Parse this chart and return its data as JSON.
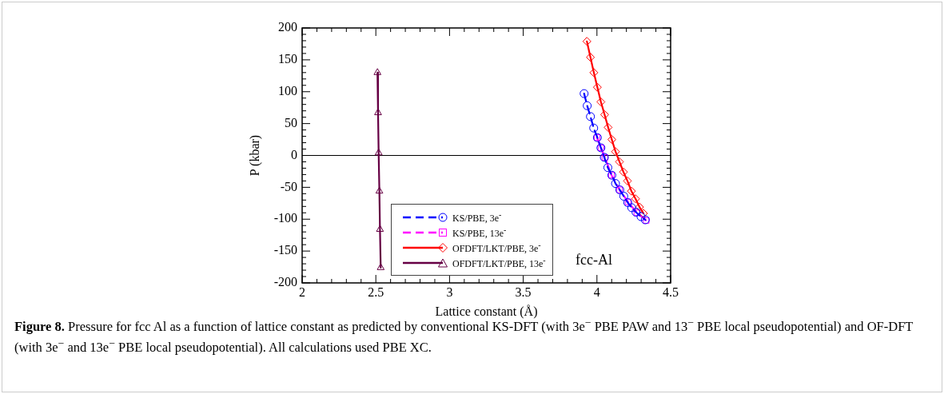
{
  "chart_data": {
    "type": "line",
    "xlabel": "Lattice constant (Å)",
    "ylabel": "P (kbar)",
    "xlim": [
      2,
      4.5
    ],
    "xticks": [
      2,
      2.5,
      3,
      3.5,
      4,
      4.5
    ],
    "ylim": [
      -200,
      200
    ],
    "yticks": [
      -200,
      -150,
      -100,
      -50,
      0,
      50,
      100,
      150,
      200
    ],
    "grid": false,
    "legend": "bottom left",
    "ref_lines": [
      {
        "axis": "y",
        "value": 0,
        "color": "#000000",
        "line_style": "solid"
      }
    ],
    "series": [
      {
        "name": "KS/PBE, 3e$^{-}$",
        "color": "#0000ff",
        "marker": "circle",
        "line_style": "dashed",
        "x": [
          3.913,
          3.934,
          3.956,
          3.978,
          4.003,
          4.027,
          4.05,
          4.074,
          4.101,
          4.126,
          4.155,
          4.182,
          4.209,
          4.236,
          4.265,
          4.299,
          4.328
        ],
        "values": [
          97,
          78,
          61,
          43,
          28,
          12,
          -3,
          -19,
          -31,
          -44,
          -54,
          -64,
          -74,
          -82,
          -89,
          -96,
          -101
        ]
      },
      {
        "name": "KS/PBE, 13e$^{-}$",
        "color": "#ff00ff",
        "marker": "square",
        "line_style": "dashed",
        "x": [
          4.001,
          4.027,
          4.054,
          4.099,
          4.154,
          4.211,
          4.271,
          4.334
        ],
        "values": [
          28,
          12,
          -3,
          -31,
          -54,
          -73,
          -90,
          -102
        ]
      },
      {
        "name": "OFDFT/LKT/PBE, 3e$^{-}$",
        "color": "#ff0000",
        "marker": "diamond",
        "line_style": "solid",
        "x": [
          3.932,
          3.956,
          3.979,
          4.003,
          4.027,
          4.052,
          4.076,
          4.101,
          4.126,
          4.153,
          4.18,
          4.207,
          4.234,
          4.262,
          4.289,
          4.316
        ],
        "values": [
          179,
          154,
          130,
          107,
          84,
          64,
          44,
          25,
          6,
          -10,
          -26,
          -40,
          -56,
          -68,
          -81,
          -91
        ]
      },
      {
        "name": "OFDFT/LKT/PBE, 13e$^{-}$",
        "color": "#660044",
        "marker": "triangle",
        "line_style": "solid",
        "x": [
          2.511,
          2.515,
          2.519,
          2.524,
          2.528,
          2.533
        ],
        "values": [
          130,
          67,
          4,
          -56,
          -116,
          -176
        ]
      }
    ],
    "annotations": [
      "fcc-Al",
      "Figure 8. Pressure for fcc Al as a function of lattice constant as predicted by conventional KS-DFT (with 3e$^{−}$ PBE PAW and 13$^{−}$ PBE local pseudopotential) and OF-DFT (with 3e$^{−}$ and 13e$^{−}$ PBE local pseudopotential). All calculations used PBE XC."
    ]
  }
}
